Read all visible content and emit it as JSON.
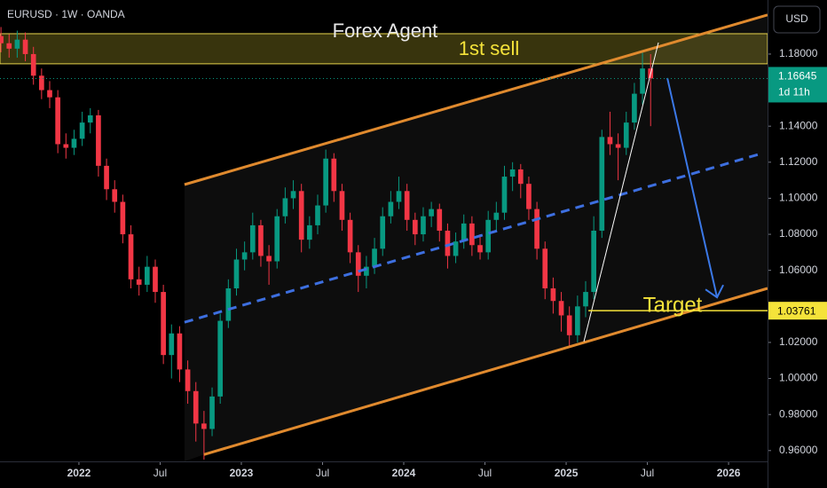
{
  "chart_data": {
    "type": "candlestick",
    "title": "EURUSD · 1W · OANDA",
    "currency": "USD",
    "up_color": "#089981",
    "down_color": "#f23645",
    "xlim": [
      2021.514,
      2026.24
    ],
    "ylim": [
      0.954,
      1.21
    ],
    "xticks": [
      {
        "value": 2022,
        "label": "2022"
      },
      {
        "value": 2022.5,
        "label": "Jul"
      },
      {
        "value": 2023,
        "label": "2023"
      },
      {
        "value": 2023.5,
        "label": "Jul"
      },
      {
        "value": 2024,
        "label": "2024"
      },
      {
        "value": 2024.5,
        "label": "Jul"
      },
      {
        "value": 2025,
        "label": "2025"
      },
      {
        "value": 2025.5,
        "label": "Jul"
      },
      {
        "value": 2026,
        "label": "2026"
      }
    ],
    "yticks": [
      {
        "value": 0.96,
        "label": "0.96000"
      },
      {
        "value": 0.98,
        "label": "0.98000"
      },
      {
        "value": 1.0,
        "label": "1.00000"
      },
      {
        "value": 1.02,
        "label": "1.02000"
      },
      {
        "value": 1.06,
        "label": "1.06000"
      },
      {
        "value": 1.08,
        "label": "1.08000"
      },
      {
        "value": 1.1,
        "label": "1.10000"
      },
      {
        "value": 1.12,
        "label": "1.12000"
      },
      {
        "value": 1.14,
        "label": "1.14000"
      },
      {
        "value": 1.18,
        "label": "1.18000"
      }
    ],
    "x": [
      2021.52,
      2021.57,
      2021.62,
      2021.67,
      2021.72,
      2021.77,
      2021.82,
      2021.87,
      2021.92,
      2021.97,
      2022.02,
      2022.07,
      2022.12,
      2022.17,
      2022.22,
      2022.27,
      2022.32,
      2022.37,
      2022.42,
      2022.47,
      2022.52,
      2022.57,
      2022.62,
      2022.67,
      2022.72,
      2022.77,
      2022.82,
      2022.87,
      2022.92,
      2022.97,
      2023.02,
      2023.07,
      2023.12,
      2023.17,
      2023.22,
      2023.27,
      2023.32,
      2023.37,
      2023.42,
      2023.47,
      2023.52,
      2023.57,
      2023.62,
      2023.67,
      2023.72,
      2023.77,
      2023.82,
      2023.87,
      2023.92,
      2023.97,
      2024.02,
      2024.07,
      2024.12,
      2024.17,
      2024.22,
      2024.27,
      2024.32,
      2024.37,
      2024.42,
      2024.47,
      2024.52,
      2024.57,
      2024.62,
      2024.67,
      2024.72,
      2024.77,
      2024.82,
      2024.87,
      2024.92,
      2024.97,
      2025.02,
      2025.07,
      2025.12,
      2025.17,
      2025.22,
      2025.27,
      2025.32,
      2025.37,
      2025.42,
      2025.47,
      2025.52
    ],
    "open": [
      1.19,
      1.186,
      1.183,
      1.188,
      1.18,
      1.168,
      1.16,
      1.156,
      1.13,
      1.128,
      1.133,
      1.142,
      1.146,
      1.118,
      1.105,
      1.098,
      1.08,
      1.055,
      1.052,
      1.062,
      1.048,
      1.013,
      1.025,
      1.005,
      0.993,
      0.975,
      0.972,
      0.99,
      1.032,
      1.05,
      1.066,
      1.07,
      1.085,
      1.068,
      1.065,
      1.09,
      1.1,
      1.104,
      1.077,
      1.085,
      1.096,
      1.122,
      1.104,
      1.088,
      1.07,
      1.057,
      1.062,
      1.072,
      1.09,
      1.098,
      1.104,
      1.088,
      1.08,
      1.09,
      1.094,
      1.082,
      1.068,
      1.076,
      1.086,
      1.074,
      1.07,
      1.088,
      1.092,
      1.112,
      1.116,
      1.108,
      1.094,
      1.072,
      1.05,
      1.043,
      1.035,
      1.024,
      1.04,
      1.048,
      1.082,
      1.134,
      1.13,
      1.128,
      1.142,
      1.158,
      1.172
    ],
    "high": [
      1.195,
      1.191,
      1.193,
      1.192,
      1.184,
      1.172,
      1.165,
      1.16,
      1.136,
      1.138,
      1.148,
      1.15,
      1.149,
      1.122,
      1.11,
      1.102,
      1.085,
      1.062,
      1.068,
      1.066,
      1.052,
      1.03,
      1.029,
      1.01,
      0.998,
      0.982,
      0.995,
      1.036,
      1.055,
      1.072,
      1.076,
      1.092,
      1.088,
      1.074,
      1.094,
      1.106,
      1.11,
      1.108,
      1.09,
      1.102,
      1.127,
      1.125,
      1.108,
      1.092,
      1.074,
      1.068,
      1.078,
      1.095,
      1.104,
      1.112,
      1.108,
      1.092,
      1.095,
      1.098,
      1.097,
      1.086,
      1.081,
      1.091,
      1.09,
      1.08,
      1.093,
      1.098,
      1.118,
      1.12,
      1.119,
      1.112,
      1.098,
      1.076,
      1.056,
      1.048,
      1.04,
      1.046,
      1.054,
      1.09,
      1.138,
      1.148,
      1.136,
      1.148,
      1.164,
      1.182,
      1.18
    ],
    "low": [
      1.181,
      1.178,
      1.178,
      1.176,
      1.163,
      1.155,
      1.15,
      1.125,
      1.122,
      1.124,
      1.129,
      1.136,
      1.112,
      1.099,
      1.092,
      1.075,
      1.05,
      1.046,
      1.048,
      1.042,
      1.008,
      1.0,
      0.998,
      0.986,
      0.965,
      0.955,
      0.968,
      0.986,
      1.028,
      1.046,
      1.06,
      1.066,
      1.062,
      1.052,
      1.061,
      1.086,
      1.094,
      1.07,
      1.072,
      1.08,
      1.092,
      1.098,
      1.082,
      1.064,
      1.048,
      1.05,
      1.058,
      1.068,
      1.086,
      1.094,
      1.082,
      1.074,
      1.076,
      1.084,
      1.076,
      1.061,
      1.064,
      1.072,
      1.068,
      1.066,
      1.066,
      1.082,
      1.088,
      1.104,
      1.1,
      1.088,
      1.066,
      1.044,
      1.036,
      1.026,
      1.018,
      1.02,
      1.034,
      1.044,
      1.078,
      1.124,
      1.11,
      1.124,
      1.138,
      1.152,
      1.14
    ],
    "close": [
      1.186,
      1.183,
      1.188,
      1.18,
      1.168,
      1.16,
      1.156,
      1.13,
      1.128,
      1.133,
      1.142,
      1.146,
      1.118,
      1.105,
      1.098,
      1.08,
      1.055,
      1.052,
      1.062,
      1.048,
      1.013,
      1.025,
      1.005,
      0.993,
      0.975,
      0.972,
      0.99,
      1.032,
      1.05,
      1.066,
      1.07,
      1.085,
      1.068,
      1.065,
      1.09,
      1.1,
      1.104,
      1.077,
      1.085,
      1.096,
      1.122,
      1.104,
      1.088,
      1.07,
      1.057,
      1.062,
      1.072,
      1.09,
      1.098,
      1.104,
      1.088,
      1.08,
      1.09,
      1.094,
      1.082,
      1.068,
      1.076,
      1.086,
      1.074,
      1.07,
      1.088,
      1.092,
      1.112,
      1.116,
      1.108,
      1.094,
      1.072,
      1.05,
      1.043,
      1.035,
      1.024,
      1.04,
      1.048,
      1.082,
      1.134,
      1.13,
      1.128,
      1.142,
      1.158,
      1.172,
      1.16645
    ],
    "countdown": "1d 11h",
    "sell_zone": {
      "label": "1st sell",
      "low": 1.1746,
      "high": 1.1913
    },
    "zone_title": "Forex Agent",
    "channel_upper": [
      [
        2022.65,
        1.1076
      ],
      [
        2026.24,
        1.2017
      ]
    ],
    "channel_lower": [
      [
        2022.77,
        0.9578
      ],
      [
        2026.24,
        1.05
      ]
    ],
    "channel_mid": [
      [
        2022.65,
        1.0312
      ],
      [
        2026.202,
        1.1248
      ]
    ],
    "trend_line": [
      [
        2025.109,
        1.0204
      ],
      [
        2025.568,
        1.1864
      ]
    ],
    "forecast_arrow": [
      [
        2025.623,
        1.1667
      ],
      [
        2025.929,
        1.045
      ]
    ],
    "target": {
      "label": "Target",
      "value": 1.03761,
      "from": 2025.137
    }
  }
}
